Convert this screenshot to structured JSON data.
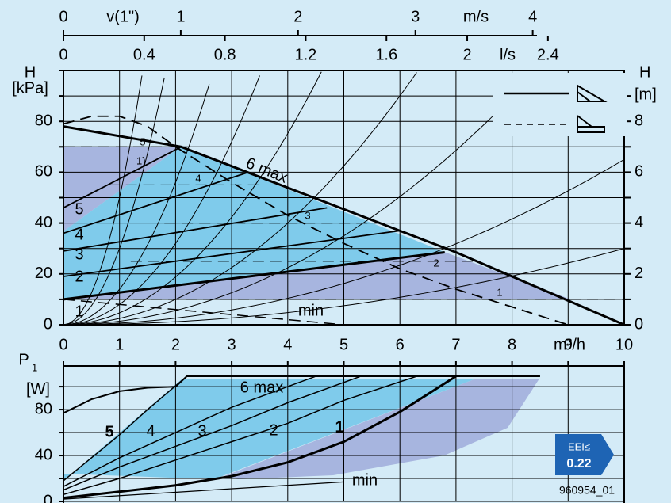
{
  "chart_data": [
    {
      "type": "line",
      "xlabel": "m³/h",
      "ylabel": "H",
      "yunit": "[kPa]",
      "y2label": "H",
      "y2unit": "[m]",
      "xlim": [
        0,
        10
      ],
      "xticks": [
        0,
        1,
        2,
        3,
        4,
        5,
        6,
        7,
        8,
        9,
        10
      ],
      "ylim": [
        0,
        100
      ],
      "yticks": [
        0,
        20,
        40,
        60,
        80
      ],
      "minor_yticks": [
        10,
        30,
        50,
        70,
        90,
        100
      ],
      "y2lim": [
        0,
        10
      ],
      "y2ticks": [
        0,
        2,
        4,
        6,
        8
      ],
      "minor_y2ticks": [
        1,
        3,
        5,
        7,
        9
      ],
      "grid": true,
      "top_axes": [
        {
          "label": "v(1\")",
          "unit": "m/s",
          "xlim": [
            0,
            4.78
          ],
          "ticks": [
            0,
            1,
            2,
            3,
            4
          ]
        },
        {
          "unit": "l/s",
          "xlim": [
            0,
            2.7778
          ],
          "ticks": [
            0,
            0.4,
            0.8,
            1.2,
            1.6,
            2,
            2.4
          ]
        }
      ],
      "annotation": "1)",
      "system_curves_k": [
        50,
        30,
        14,
        8,
        4.7,
        2.5,
        1.4,
        0.65,
        0.3
      ],
      "series": [
        {
          "name": "1",
          "x": [
            0,
            6.8
          ],
          "values": [
            10,
            28.5
          ],
          "dash": false,
          "width": 3
        },
        {
          "name": "2",
          "x": [
            0,
            6
          ],
          "values": [
            19,
            37
          ],
          "dash": false,
          "width": 1.8
        },
        {
          "name": "3",
          "x": [
            0,
            4.7
          ],
          "values": [
            29,
            46
          ],
          "dash": false,
          "width": 1.8
        },
        {
          "name": "4",
          "x": [
            0,
            3.3
          ],
          "values": [
            36,
            60
          ],
          "dash": false,
          "width": 1.8
        },
        {
          "name": "5",
          "x": [
            0,
            2.1
          ],
          "values": [
            46,
            70
          ],
          "dash": false,
          "width": 1.8
        },
        {
          "name": "6 max",
          "x": [
            0,
            2.1,
            7,
            8,
            10
          ],
          "values": [
            78,
            70,
            28.5,
            19,
            0
          ],
          "dash": false,
          "width": 3
        },
        {
          "x": [
            0,
            0.5,
            1,
            1.5,
            2,
            3,
            4,
            5,
            6,
            7,
            8,
            9
          ],
          "values": [
            79,
            82,
            82,
            78,
            70,
            56,
            43,
            32,
            22,
            14,
            7,
            0
          ],
          "dash": true,
          "width": 1.8
        },
        {
          "name": "min",
          "x": [
            0,
            5
          ],
          "values": [
            10,
            0
          ],
          "dash": true,
          "width": 1.5
        },
        {
          "name": "5",
          "x": [
            0,
            2.1
          ],
          "values": [
            70,
            70
          ],
          "dash": true,
          "width": 1.2
        },
        {
          "name": "4",
          "x": [
            0.8,
            3.5
          ],
          "values": [
            55,
            55
          ],
          "dash": true,
          "width": 1.2
        },
        {
          "name": "3",
          "x": [
            1.8,
            5.9
          ],
          "values": [
            40,
            40
          ],
          "dash": true,
          "width": 1.2
        },
        {
          "name": "2",
          "x": [
            1.2,
            7.3
          ],
          "values": [
            25,
            25
          ],
          "dash": true,
          "width": 1.2
        },
        {
          "name": "1",
          "x": [
            0,
            10
          ],
          "values": [
            10,
            10
          ],
          "dash": true,
          "width": 1.2
        }
      ]
    },
    {
      "type": "line",
      "ylabel": "P",
      "ylabel_sub": "1",
      "yunit": "[W]",
      "xlim": [
        0,
        10
      ],
      "xgrid": [
        0,
        1,
        2,
        3,
        4,
        5,
        6,
        7,
        8,
        9,
        10
      ],
      "ylim": [
        0,
        118
      ],
      "yticks": [
        0,
        40,
        80
      ],
      "minor_yticks": [
        20,
        60,
        100
      ],
      "grid": true,
      "series": [
        {
          "name": "1",
          "x": [
            0,
            2,
            3,
            4,
            5,
            6,
            7
          ],
          "values": [
            3,
            14,
            22,
            34,
            52,
            78,
            109
          ],
          "dash": false,
          "width": 3
        },
        {
          "name": "2",
          "x": [
            0,
            1,
            2,
            3,
            4,
            5,
            6.3
          ],
          "values": [
            6,
            20,
            36,
            52,
            68,
            88,
            109
          ],
          "dash": false,
          "width": 1.5
        },
        {
          "name": "3",
          "x": [
            0,
            1,
            2,
            3,
            4,
            5.3
          ],
          "values": [
            10,
            30,
            48,
            66,
            86,
            109
          ],
          "dash": false,
          "width": 1.5
        },
        {
          "name": "4",
          "x": [
            0,
            1,
            2,
            3,
            4.5
          ],
          "values": [
            13,
            38,
            60,
            82,
            109
          ],
          "dash": false,
          "width": 1.5
        },
        {
          "name": "5",
          "x": [
            0,
            0.5,
            1,
            1.5,
            2.2
          ],
          "values": [
            18,
            38,
            58,
            80,
            109
          ],
          "dash": false,
          "width": 1.5
        },
        {
          "name": "6 max",
          "x": [
            0,
            0.5,
            1,
            1.5,
            2,
            2.2,
            8.5
          ],
          "values": [
            77,
            89,
            96,
            99,
            100,
            109,
            109
          ],
          "dash": false,
          "width": 2
        },
        {
          "name": "min",
          "x": [
            0,
            5
          ],
          "values": [
            2,
            17
          ],
          "dash": false,
          "width": 1.2
        }
      ]
    }
  ],
  "badge": {
    "line1": "EEI≤",
    "line2": "0.22"
  },
  "code": "960954_01"
}
